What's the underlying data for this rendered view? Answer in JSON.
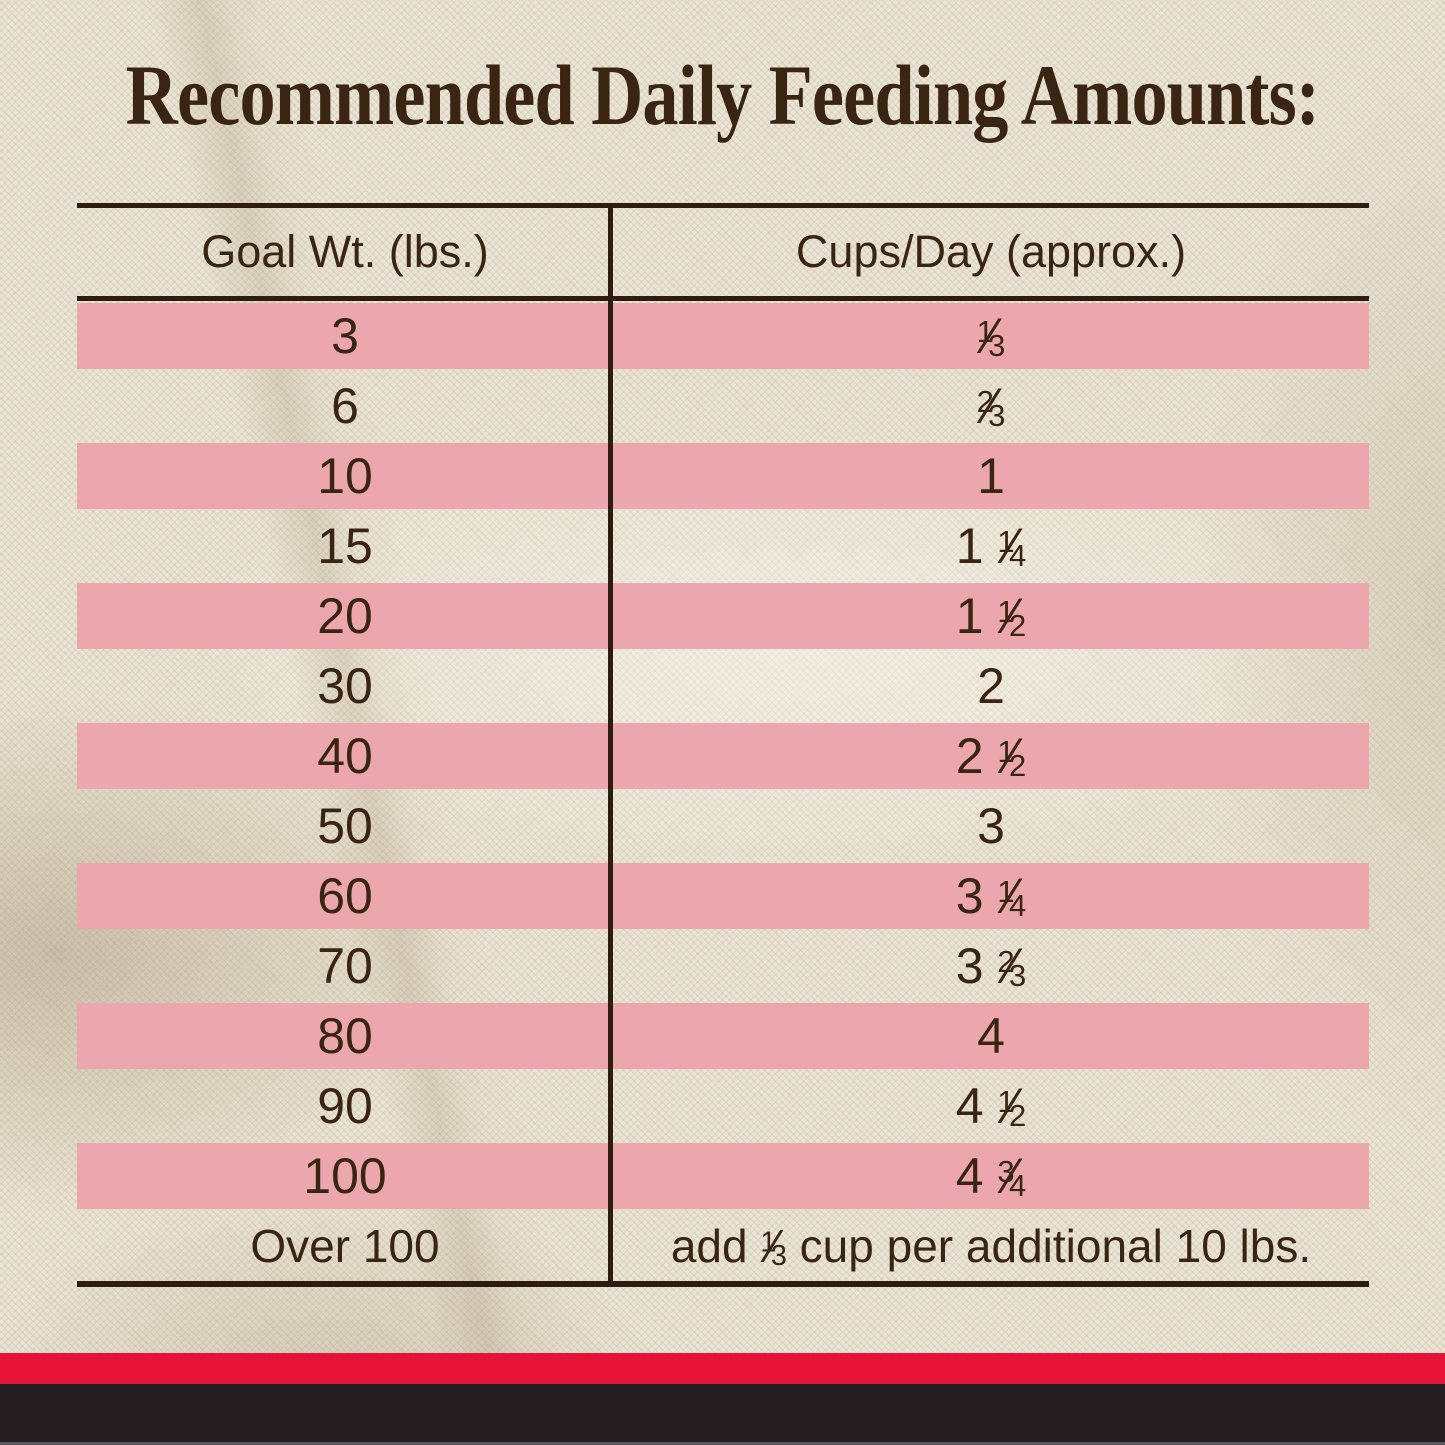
{
  "title": "Recommended Daily Feeding Amounts:",
  "table": {
    "columns": [
      "Goal Wt. (lbs.)",
      "Cups/Day (approx.)"
    ],
    "rows": [
      {
        "goal_wt": "3",
        "cups_day": "1/3",
        "highlight": true
      },
      {
        "goal_wt": "6",
        "cups_day": "2/3",
        "highlight": false
      },
      {
        "goal_wt": "10",
        "cups_day": "1",
        "highlight": true
      },
      {
        "goal_wt": "15",
        "cups_day": "1 1/4",
        "highlight": false
      },
      {
        "goal_wt": "20",
        "cups_day": "1 1/2",
        "highlight": true
      },
      {
        "goal_wt": "30",
        "cups_day": "2",
        "highlight": false
      },
      {
        "goal_wt": "40",
        "cups_day": "2 1/2",
        "highlight": true
      },
      {
        "goal_wt": "50",
        "cups_day": "3",
        "highlight": false
      },
      {
        "goal_wt": "60",
        "cups_day": "3 1/4",
        "highlight": true
      },
      {
        "goal_wt": "70",
        "cups_day": "3 2/3",
        "highlight": false
      },
      {
        "goal_wt": "80",
        "cups_day": "4",
        "highlight": true
      },
      {
        "goal_wt": "90",
        "cups_day": "4 1/2",
        "highlight": false
      },
      {
        "goal_wt": "100",
        "cups_day": "4 3/4",
        "highlight": true
      },
      {
        "goal_wt": "Over 100",
        "cups_day": "add 1/3 cup per additional 10 lbs.",
        "highlight": false
      }
    ]
  },
  "colors": {
    "stripe_pink": "#eca7ae",
    "accent_red": "#e51337",
    "footer_black": "#231f20",
    "text_brown": "#3a2513",
    "rule_brown": "#2e1c10",
    "fabric_cream": "#e9e2d1"
  },
  "chart_data": {
    "type": "table",
    "title": "Recommended Daily Feeding Amounts:",
    "columns": [
      "Goal Wt. (lbs.)",
      "Cups/Day (approx.)"
    ],
    "rows": [
      [
        "3",
        "1/3"
      ],
      [
        "6",
        "2/3"
      ],
      [
        "10",
        "1"
      ],
      [
        "15",
        "1 1/4"
      ],
      [
        "20",
        "1 1/2"
      ],
      [
        "30",
        "2"
      ],
      [
        "40",
        "2 1/2"
      ],
      [
        "50",
        "3"
      ],
      [
        "60",
        "3 1/4"
      ],
      [
        "70",
        "3 2/3"
      ],
      [
        "80",
        "4"
      ],
      [
        "90",
        "4 1/2"
      ],
      [
        "100",
        "4 3/4"
      ],
      [
        "Over 100",
        "add 1/3 cup per additional 10 lbs."
      ]
    ]
  }
}
